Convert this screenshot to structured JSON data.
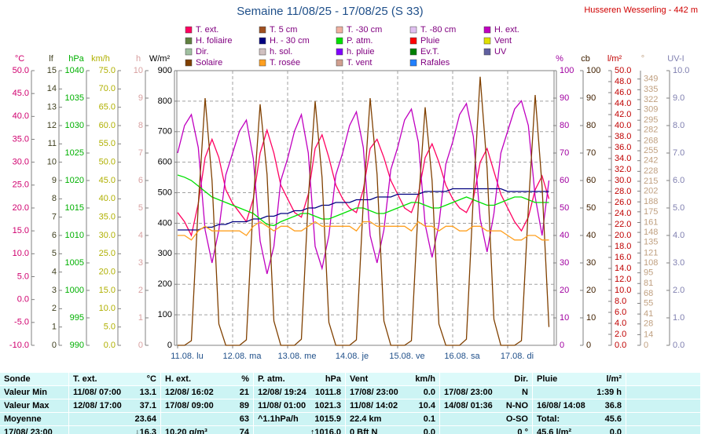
{
  "chart_data": {
    "type": "line",
    "title": "Semaine 11/08/25 - 17/08/25 (S 33)",
    "xticks": [
      "11.08. lu",
      "12.08. ma",
      "13.08. me",
      "14.08. je",
      "15.08. ve",
      "16.08. sa",
      "17.08. di"
    ],
    "axes": [
      {
        "label": "°C",
        "side": "left",
        "color": "#d0006f",
        "lim": [
          -10,
          50
        ],
        "ticks": [
          {
            "value": -10,
            "label": "-10.0"
          },
          {
            "value": -5,
            "label": "-5.0"
          },
          {
            "value": 0,
            "label": "0.0"
          },
          {
            "value": 5,
            "label": "5.0"
          },
          {
            "value": 10,
            "label": "10.0"
          },
          {
            "value": 15,
            "label": "15.0"
          },
          {
            "value": 20,
            "label": "20.0"
          },
          {
            "value": 25,
            "label": "25.0"
          },
          {
            "value": 30,
            "label": "30.0"
          },
          {
            "value": 35,
            "label": "35.0"
          },
          {
            "value": 40,
            "label": "40.0"
          },
          {
            "value": 45,
            "label": "45.0"
          },
          {
            "value": 50,
            "label": "50.0"
          }
        ]
      },
      {
        "label": "lf",
        "side": "left",
        "color": "#404020",
        "lim": [
          0,
          15
        ],
        "ticks": [
          0,
          1,
          2,
          3,
          4,
          5,
          6,
          7,
          8,
          9,
          10,
          11,
          12,
          13,
          14,
          15
        ]
      },
      {
        "label": "hPa",
        "side": "left",
        "color": "#00b000",
        "lim": [
          990,
          1040
        ],
        "ticks": [
          990,
          995,
          1000,
          1005,
          1010,
          1015,
          1020,
          1025,
          1030,
          1035,
          1040
        ]
      },
      {
        "label": "km/h",
        "side": "left",
        "color": "#b0b000",
        "lim": [
          0,
          75
        ],
        "ticks": [
          {
            "value": 0,
            "label": "0.0"
          },
          {
            "value": 5,
            "label": "5.0"
          },
          {
            "value": 10,
            "label": "10.0"
          },
          {
            "value": 15,
            "label": "15.0"
          },
          {
            "value": 20,
            "label": "20.0"
          },
          {
            "value": 25,
            "label": "25.0"
          },
          {
            "value": 30,
            "label": "30.0"
          },
          {
            "value": 35,
            "label": "35.0"
          },
          {
            "value": 40,
            "label": "40.0"
          },
          {
            "value": 45,
            "label": "45.0"
          },
          {
            "value": 50,
            "label": "50.0"
          },
          {
            "value": 55,
            "label": "55.0"
          },
          {
            "value": 60,
            "label": "60.0"
          },
          {
            "value": 65,
            "label": "65.0"
          },
          {
            "value": 70,
            "label": "70.0"
          },
          {
            "value": 75,
            "label": "75.0"
          }
        ]
      },
      {
        "label": "h",
        "side": "left",
        "color": "#d8a0a0",
        "lim": [
          0,
          10
        ],
        "ticks": [
          0,
          1,
          2,
          3,
          4,
          5,
          6,
          7,
          8,
          9,
          10
        ]
      },
      {
        "label": "W/m²",
        "side": "left",
        "color": "#000000",
        "lim": [
          0,
          900
        ],
        "ticks": [
          0,
          100,
          200,
          300,
          400,
          500,
          600,
          700,
          800,
          900
        ],
        "grid": true
      },
      {
        "label": "%",
        "side": "right",
        "color": "#a000a0",
        "lim": [
          0,
          100
        ],
        "ticks": [
          0,
          10,
          20,
          30,
          40,
          50,
          60,
          70,
          80,
          90,
          100
        ]
      },
      {
        "label": "cb",
        "side": "right",
        "color": "#402000",
        "lim": [
          0,
          100
        ],
        "ticks": [
          0,
          10,
          20,
          30,
          40,
          50,
          60,
          70,
          80,
          90,
          100
        ]
      },
      {
        "label": "l/m²",
        "side": "right",
        "color": "#c00000",
        "lim": [
          0,
          50
        ],
        "ticks": [
          {
            "value": 0,
            "label": "0.0"
          },
          {
            "value": 2,
            "label": "2.0"
          },
          {
            "value": 4,
            "label": "4.0"
          },
          {
            "value": 6,
            "label": "6.0"
          },
          {
            "value": 8,
            "label": "8.0"
          },
          {
            "value": 10,
            "label": "10.0"
          },
          {
            "value": 12,
            "label": "12.0"
          },
          {
            "value": 14,
            "label": "14.0"
          },
          {
            "value": 16,
            "label": "16.0"
          },
          {
            "value": 18,
            "label": "18.0"
          },
          {
            "value": 20,
            "label": "20.0"
          },
          {
            "value": 22,
            "label": "22.0"
          },
          {
            "value": 24,
            "label": "24.0"
          },
          {
            "value": 26,
            "label": "26.0"
          },
          {
            "value": 28,
            "label": "28.0"
          },
          {
            "value": 30,
            "label": "30.0"
          },
          {
            "value": 32,
            "label": "32.0"
          },
          {
            "value": 34,
            "label": "34.0"
          },
          {
            "value": 36,
            "label": "36.0"
          },
          {
            "value": 38,
            "label": "38.0"
          },
          {
            "value": 40,
            "label": "40.0"
          },
          {
            "value": 42,
            "label": "42.0"
          },
          {
            "value": 44,
            "label": "44.0"
          },
          {
            "value": 46,
            "label": "46.0"
          },
          {
            "value": 48,
            "label": "48.0"
          },
          {
            "value": 50,
            "label": "50.0"
          }
        ]
      },
      {
        "label": "°",
        "side": "right",
        "color": "#c0a080",
        "lim": [
          0,
          360
        ],
        "ticks": [
          0,
          14,
          28,
          41,
          55,
          68,
          81,
          95,
          108,
          121,
          135,
          148,
          161,
          175,
          188,
          202,
          215,
          228,
          242,
          255,
          268,
          282,
          295,
          309,
          322,
          335,
          349
        ]
      },
      {
        "label": "UV-I",
        "side": "right",
        "color": "#8080b0",
        "lim": [
          0,
          10
        ],
        "ticks": [
          {
            "value": 0,
            "label": "0.0"
          },
          {
            "value": 1,
            "label": "1.0"
          },
          {
            "value": 2,
            "label": "2.0"
          },
          {
            "value": 3,
            "label": "3.0"
          },
          {
            "value": 4,
            "label": "4.0"
          },
          {
            "value": 5,
            "label": "5.0"
          },
          {
            "value": 6,
            "label": "6.0"
          },
          {
            "value": 7,
            "label": "7.0"
          },
          {
            "value": 8,
            "label": "8.0"
          },
          {
            "value": 9,
            "label": "9.0"
          },
          {
            "value": 10,
            "label": "10.0"
          }
        ]
      }
    ],
    "series": [
      {
        "name": "T. ext.",
        "color": "#ff0060",
        "axis": 0,
        "values": [
          19,
          17,
          14,
          21,
          31,
          35,
          31,
          24,
          21,
          19,
          17,
          22,
          32,
          37,
          32,
          25,
          22,
          19,
          18,
          23,
          33,
          36,
          31,
          25,
          22,
          20,
          19,
          24,
          33,
          35,
          31,
          26,
          23,
          20,
          19,
          23,
          31,
          34,
          30,
          25,
          22,
          20,
          19,
          22,
          30,
          33,
          28,
          23,
          20,
          17,
          15,
          18,
          24,
          27,
          22
        ]
      },
      {
        "name": "T. 5 cm",
        "color": "#a05020"
      },
      {
        "name": "T. -30 cm",
        "color": "#f0b0a0"
      },
      {
        "name": "T. -80 cm",
        "color": "#e0c0f0"
      },
      {
        "name": "H. ext.",
        "color": "#c000c0",
        "axis": 6,
        "values": [
          70,
          80,
          84,
          72,
          42,
          30,
          42,
          62,
          70,
          78,
          82,
          68,
          38,
          26,
          36,
          60,
          68,
          78,
          84,
          70,
          36,
          28,
          40,
          62,
          70,
          80,
          85,
          72,
          40,
          30,
          42,
          64,
          72,
          82,
          86,
          74,
          44,
          32,
          44,
          66,
          74,
          84,
          88,
          76,
          46,
          34,
          48,
          70,
          78,
          86,
          89,
          80,
          54,
          40,
          60
        ]
      },
      {
        "name": "H. foliaire",
        "color": "#608040"
      },
      {
        "name": "H. - 30 cm",
        "color": "#000080",
        "axis": 6,
        "values": [
          42,
          42,
          42,
          42,
          43,
          43,
          44,
          44,
          45,
          45,
          45,
          46,
          46,
          47,
          47,
          48,
          48,
          49,
          49,
          50,
          50,
          51,
          51,
          52,
          52,
          52,
          53,
          53,
          53,
          54,
          54,
          54,
          55,
          55,
          55,
          55,
          56,
          56,
          56,
          56,
          57,
          57,
          57,
          57,
          57,
          57,
          57,
          57,
          56,
          56,
          56,
          56,
          56,
          56,
          56
        ]
      },
      {
        "name": "P. atm.",
        "color": "#00e000",
        "axis": 2,
        "values": [
          1021,
          1020.6,
          1020,
          1019,
          1018,
          1017,
          1016.5,
          1016,
          1015.5,
          1015,
          1014.5,
          1014,
          1013,
          1012,
          1011.8,
          1012.5,
          1013,
          1013.5,
          1014,
          1014,
          1013.5,
          1013,
          1013,
          1013.5,
          1014,
          1014.5,
          1015,
          1015,
          1014.5,
          1014,
          1014,
          1014.5,
          1015,
          1015.5,
          1016,
          1016,
          1015.5,
          1015,
          1015,
          1015.5,
          1016,
          1016.5,
          1017,
          1016.5,
          1016,
          1015.5,
          1015.5,
          1016,
          1016.5,
          1017,
          1017,
          1016.5,
          1016,
          1016,
          1016
        ]
      },
      {
        "name": "Pluie",
        "color": "#ff0000"
      },
      {
        "name": "Vent",
        "color": "#e0e000"
      },
      {
        "name": "Dir.",
        "color": "#a0c0a0"
      },
      {
        "name": "h. sol.",
        "color": "#d0c0c0"
      },
      {
        "name": "h. pluie",
        "color": "#8000ff"
      },
      {
        "name": "Ev.T.",
        "color": "#008000"
      },
      {
        "name": "UV",
        "color": "#6060a0"
      },
      {
        "name": "Solaire",
        "color": "#804000",
        "axis": 5,
        "values": [
          0,
          0,
          15,
          460,
          810,
          540,
          70,
          0,
          0,
          0,
          18,
          470,
          790,
          560,
          80,
          0,
          0,
          0,
          20,
          480,
          800,
          550,
          75,
          0,
          0,
          0,
          18,
          470,
          810,
          560,
          80,
          0,
          0,
          0,
          15,
          460,
          780,
          540,
          70,
          0,
          0,
          0,
          20,
          490,
          880,
          580,
          85,
          0,
          0,
          0,
          15,
          450,
          820,
          520,
          60
        ]
      },
      {
        "name": "T. rosée",
        "color": "#ffa020",
        "axis": 0,
        "values": [
          14,
          14,
          13,
          15,
          16,
          15,
          15,
          15,
          15,
          15,
          14,
          16,
          17,
          16,
          15,
          16,
          16,
          15,
          15,
          16,
          17,
          16,
          16,
          16,
          16,
          16,
          15,
          17,
          17,
          16,
          16,
          16,
          16,
          16,
          15,
          17,
          16,
          16,
          15,
          16,
          16,
          15,
          15,
          16,
          16,
          15,
          15,
          15,
          14,
          13,
          13,
          14,
          14,
          13,
          13
        ]
      },
      {
        "name": "T. vent",
        "color": "#d0a090"
      },
      {
        "name": "Rafales",
        "color": "#2080ff"
      }
    ]
  },
  "station": "Husseren Wesserling - 442 m",
  "table": {
    "header": [
      [
        "Sonde"
      ],
      [
        "T. ext.",
        "°C"
      ],
      [
        "H. ext.",
        "%"
      ],
      [
        "P. atm.",
        "hPa"
      ],
      [
        "Vent",
        "km/h"
      ],
      [
        "Dir."
      ],
      [
        "Pluie",
        "l/m²"
      ]
    ],
    "rows": [
      [
        [
          "Valeur Min"
        ],
        [
          "11/08/ 07:00",
          "13.1"
        ],
        [
          "12/08/ 16:02",
          "21"
        ],
        [
          "12/08/ 19:24",
          "1011.8"
        ],
        [
          "17/08/ 23:00",
          "0.0"
        ],
        [
          "17/08/ 23:00",
          "N"
        ],
        [
          "1:39 h"
        ]
      ],
      [
        [
          "Valeur Max"
        ],
        [
          "12/08/ 17:00",
          "37.1"
        ],
        [
          "17/08/ 09:00",
          "89"
        ],
        [
          "11/08/ 01:00",
          "1021.3"
        ],
        [
          "11/08/ 14:02",
          "10.4"
        ],
        [
          "14/08/ 01:36",
          "N-NO"
        ],
        [
          "16/08/ 14:08",
          "36.8"
        ]
      ],
      [
        [
          "Moyenne"
        ],
        [
          "23.64"
        ],
        [
          "63"
        ],
        [
          "^1.1hPa/h",
          "1015.9"
        ],
        [
          "22.4 km",
          "0.1"
        ],
        [
          "O-SO"
        ],
        [
          "Total:",
          "45.6"
        ]
      ],
      [
        [
          "17/08/ 23:00"
        ],
        [
          "↓16.3"
        ],
        [
          "10.20 g/m³",
          "74"
        ],
        [
          "↑1016.0"
        ],
        [
          "0 Bft N",
          "0.0"
        ],
        [
          "0 °"
        ],
        [
          "45.6 l/m²",
          "0.0"
        ]
      ]
    ]
  }
}
